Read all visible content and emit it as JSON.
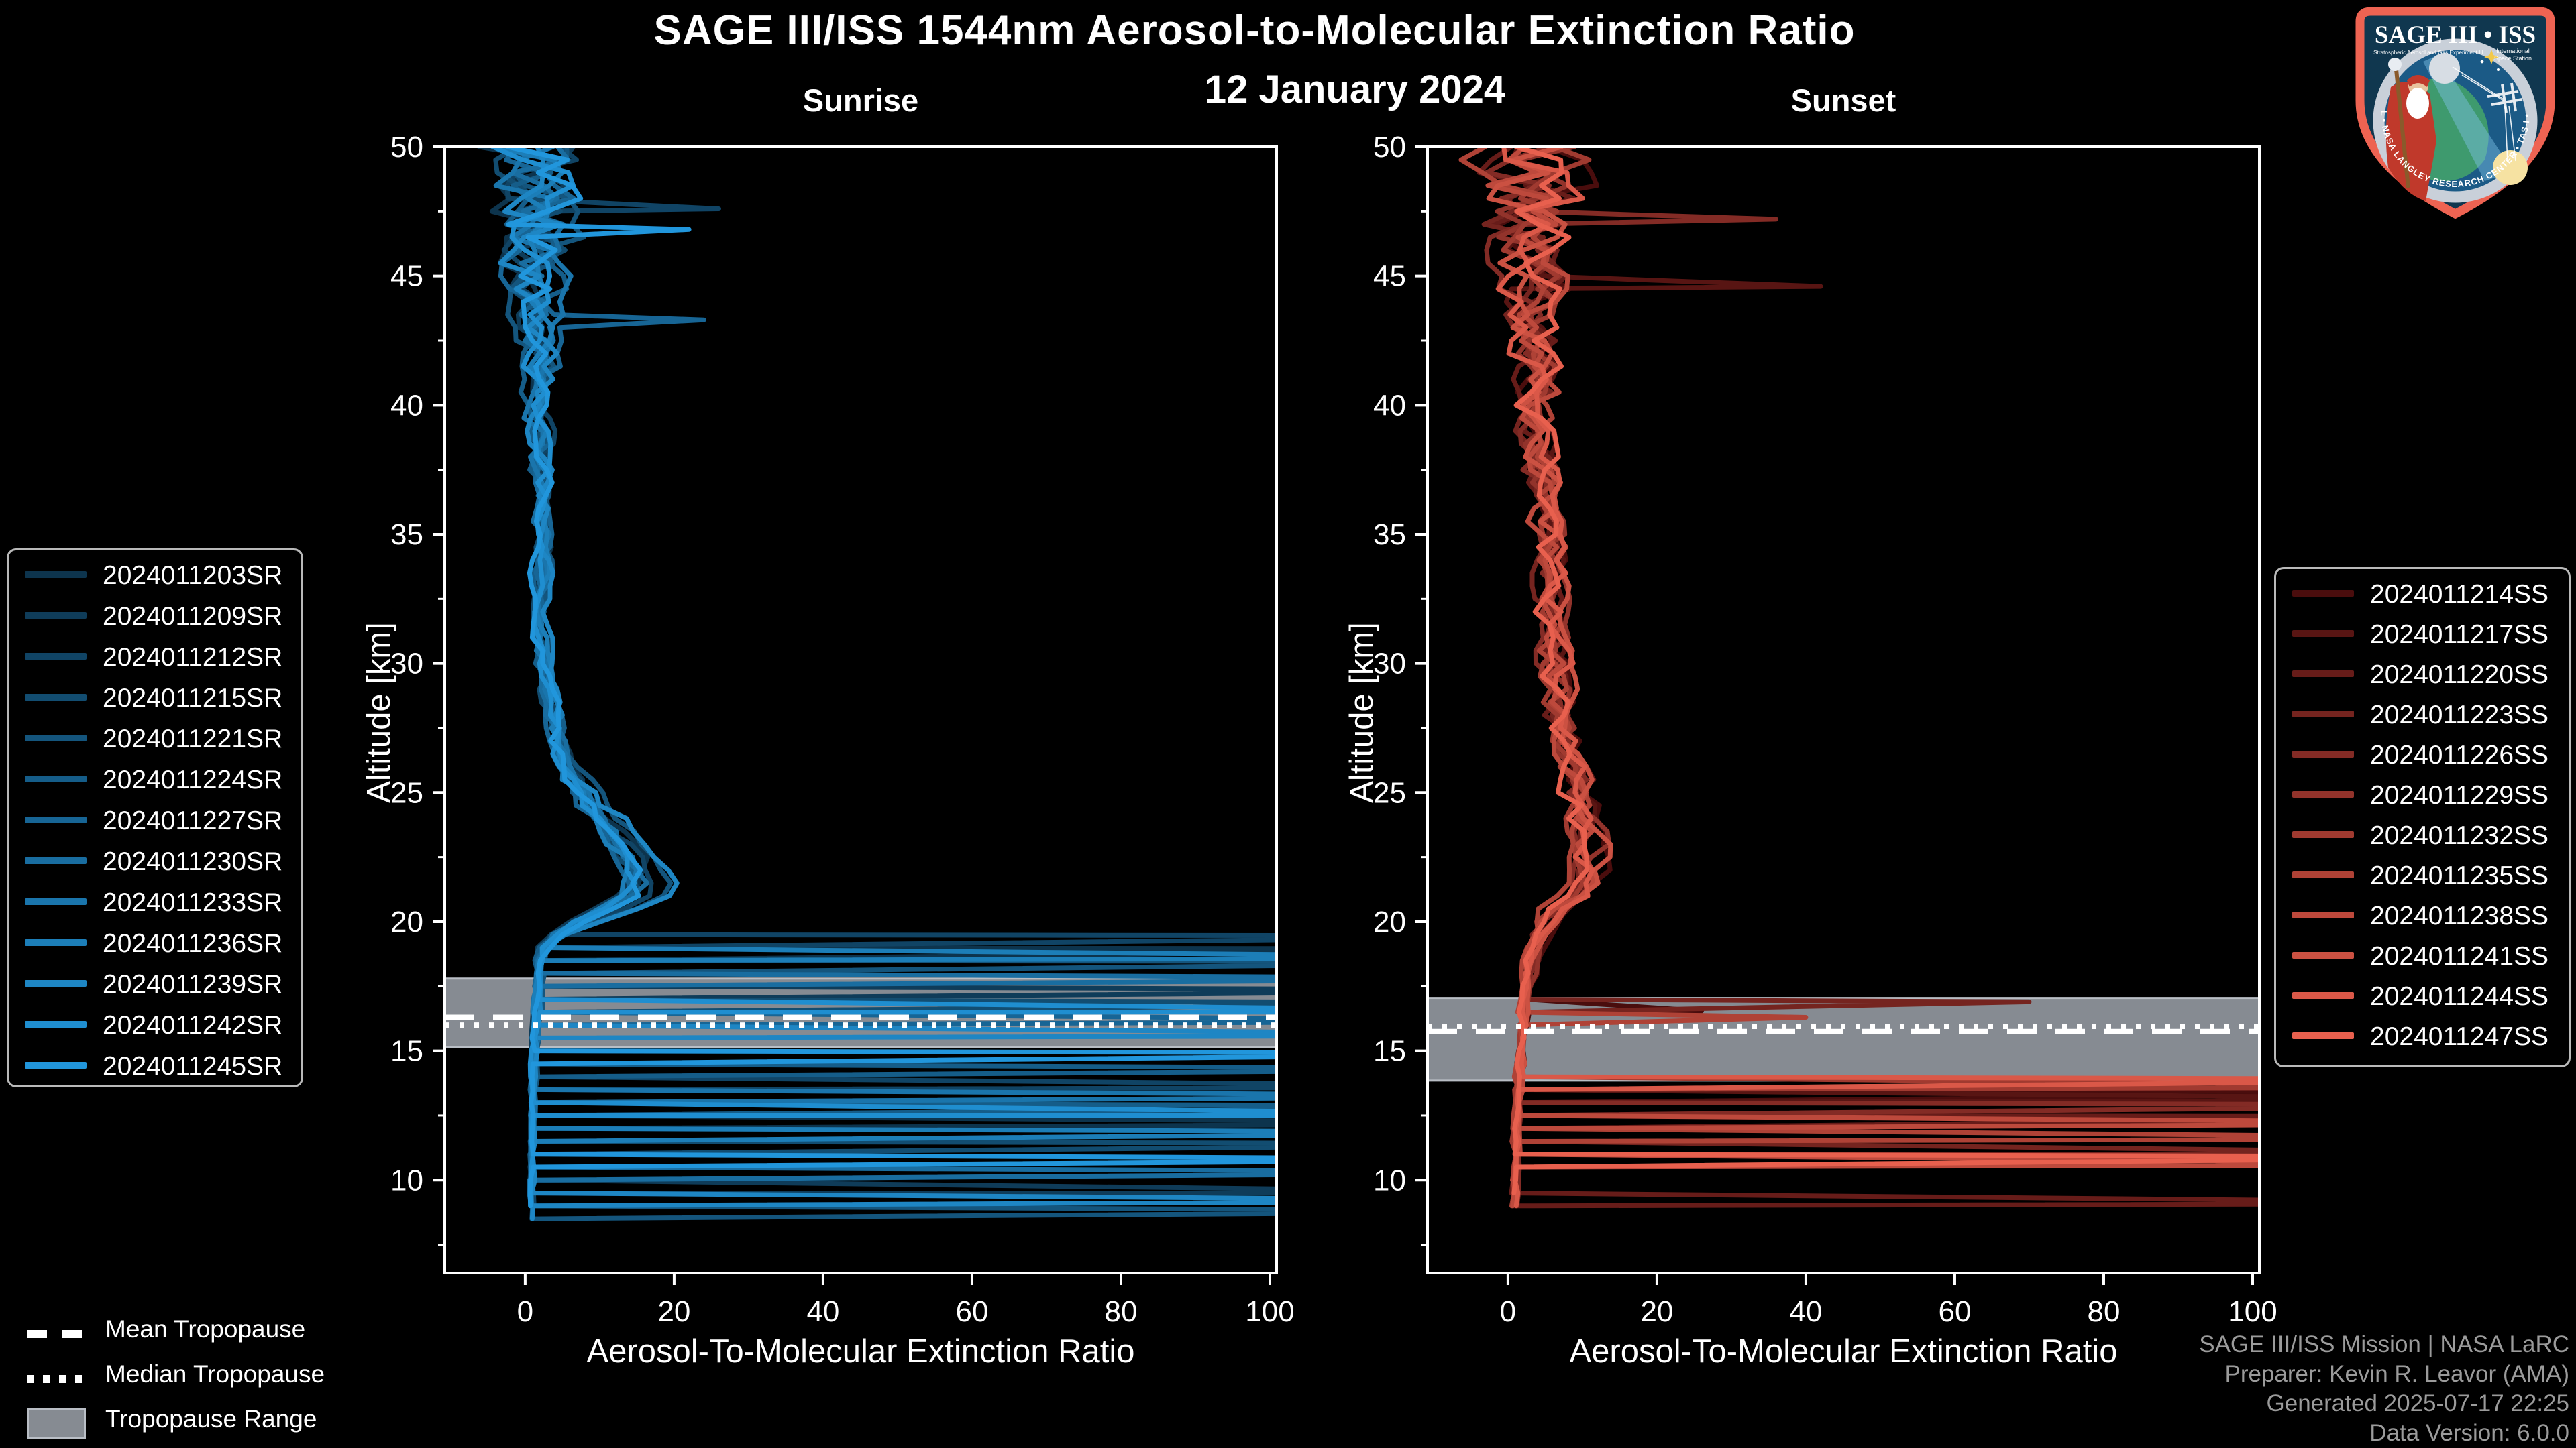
{
  "header": {
    "title": "SAGE III/ISS 1544nm Aerosol-to-Molecular Extinction Ratio",
    "date": "12 January 2024"
  },
  "colors": {
    "background": "#000000",
    "text": "#ffffff",
    "frame": "#ffffff",
    "credits_text": "#9b9b9b",
    "tropopause_band": "#868b92",
    "tropopause_band_border": "#b9bec5",
    "legend_border": "#b9b9b9",
    "logo_border": "#ee6352",
    "logo_field": "#10374f"
  },
  "tropopause_legend": {
    "mean_label": "Mean Tropopause",
    "median_label": "Median Tropopause",
    "range_label": "Tropopause Range",
    "mean_swatch": "dashed-white-line",
    "median_swatch": "dotted-white-line",
    "range_swatch": "gray-filled-box"
  },
  "credits": {
    "line1": "SAGE III/ISS Mission | NASA LaRC",
    "line2": "Preparer: Kevin R. Leavor (AMA)",
    "line3": "Generated 2025-07-17 22:25",
    "line4": "Data Version: 6.0.0"
  },
  "logo": {
    "title": "SAGE III • ISS",
    "subtitle_left": "Stratospheric Aerosol and Gas Experiment III",
    "subtitle_right_1": "International",
    "subtitle_right_2": "Space Station",
    "ring_text": "BALL • NASA LANGLEY RESEARCH CENTER • TAS-I • ESA"
  },
  "chart_data": [
    {
      "type": "line",
      "title": "Sunrise",
      "xlabel": "Aerosol-To-Molecular Extinction Ratio",
      "ylabel": "Altitude [km]",
      "xlim": [
        -10.8,
        100.9
      ],
      "ylim": [
        6.4,
        50
      ],
      "xticks": [
        0,
        20,
        40,
        60,
        80,
        100
      ],
      "yticks": [
        10,
        15,
        20,
        25,
        30,
        35,
        40,
        45,
        50
      ],
      "grid": false,
      "legend_position": "outside-left",
      "tropopause": {
        "mean_km": 16.3,
        "median_km": 16.0,
        "range_km": [
          15.15,
          17.8
        ]
      },
      "base_profile": [
        [
          50,
          1.5
        ],
        [
          48,
          1.5
        ],
        [
          46,
          1.8
        ],
        [
          44,
          1.2
        ],
        [
          42,
          2.0
        ],
        [
          40,
          2.2
        ],
        [
          38,
          2.0
        ],
        [
          36,
          2.5
        ],
        [
          34,
          2.2
        ],
        [
          32,
          2.0
        ],
        [
          30,
          2.7
        ],
        [
          29,
          3.0
        ],
        [
          28,
          4.0
        ],
        [
          27,
          4.5
        ],
        [
          26,
          5.5
        ],
        [
          25,
          8.0
        ],
        [
          24,
          11.0
        ],
        [
          23,
          14.0
        ],
        [
          22,
          16.0
        ],
        [
          21.5,
          16.3
        ],
        [
          21,
          15.5
        ],
        [
          20.5,
          12.0
        ],
        [
          20,
          8.0
        ],
        [
          19.5,
          4.5
        ],
        [
          19,
          2.8
        ],
        [
          18.5,
          2.2
        ],
        [
          18,
          2.0
        ],
        [
          17,
          1.8
        ],
        [
          16,
          1.5
        ],
        [
          15,
          1.3
        ],
        [
          13,
          1.1
        ],
        [
          11,
          0.9
        ],
        [
          8,
          0.7
        ]
      ],
      "noise_amp": [
        [
          50,
          6.5
        ],
        [
          47,
          5.0
        ],
        [
          45,
          3.5
        ],
        [
          43,
          2.2
        ],
        [
          40,
          1.6
        ],
        [
          36,
          1.2
        ],
        [
          32,
          0.9
        ],
        [
          28,
          1.0
        ],
        [
          24,
          1.3
        ],
        [
          21,
          1.3
        ],
        [
          19.5,
          0.9
        ],
        [
          18,
          0.45
        ],
        [
          16,
          0.35
        ],
        [
          12,
          0.3
        ],
        [
          8,
          0.3
        ]
      ],
      "series": [
        {
          "name": "2024011203SR",
          "color": "#0d344d",
          "seed": 3,
          "min_alt_km": 8.4,
          "cloud_spikes": [
            [
              18.95,
              150
            ],
            [
              12.2,
              150
            ]
          ]
        },
        {
          "name": "2024011209SR",
          "color": "#0f3c59",
          "seed": 9,
          "min_alt_km": 9.1,
          "cloud_spikes": [
            [
              17.35,
              150
            ],
            [
              9.5,
              150
            ]
          ]
        },
        {
          "name": "2024011212SR",
          "color": "#104465",
          "seed": 12,
          "min_alt_km": 8.6,
          "cloud_spikes": [
            [
              19.45,
              150
            ],
            [
              13.6,
              150
            ],
            [
              47.6,
              26
            ]
          ]
        },
        {
          "name": "2024011215SR",
          "color": "#124d71",
          "seed": 15,
          "min_alt_km": 9.8,
          "cloud_spikes": [
            [
              16.85,
              150
            ],
            [
              11.4,
              150
            ]
          ]
        },
        {
          "name": "2024011221SR",
          "color": "#14557d",
          "seed": 21,
          "min_alt_km": 8.3,
          "cloud_spikes": [
            [
              18.45,
              150
            ],
            [
              8.8,
              150
            ]
          ]
        },
        {
          "name": "2024011224SR",
          "color": "#155d89",
          "seed": 24,
          "min_alt_km": 10.2,
          "cloud_spikes": [
            [
              14.3,
              150
            ],
            [
              12.85,
              150
            ]
          ]
        },
        {
          "name": "2024011227SR",
          "color": "#176595",
          "seed": 27,
          "min_alt_km": 9.4,
          "cloud_spikes": [
            [
              16.15,
              150
            ],
            [
              43.3,
              24
            ]
          ]
        },
        {
          "name": "2024011230SR",
          "color": "#196da0",
          "seed": 30,
          "min_alt_km": 8.8,
          "cloud_spikes": [
            [
              17.8,
              150
            ],
            [
              10.3,
              150
            ]
          ]
        },
        {
          "name": "2024011233SR",
          "color": "#1a75ac",
          "seed": 33,
          "min_alt_km": 10.6,
          "cloud_spikes": [
            [
              13.25,
              150
            ]
          ]
        },
        {
          "name": "2024011236SR",
          "color": "#1c7eb8",
          "seed": 36,
          "min_alt_km": 9.0,
          "cloud_spikes": [
            [
              18.6,
              150
            ],
            [
              11.85,
              150
            ]
          ]
        },
        {
          "name": "2024011239SR",
          "color": "#1e86c4",
          "seed": 39,
          "min_alt_km": 8.5,
          "cloud_spikes": [
            [
              15.6,
              150
            ],
            [
              9.2,
              150
            ]
          ]
        },
        {
          "name": "2024011242SR",
          "color": "#1f8ed0",
          "seed": 42,
          "min_alt_km": 9.6,
          "cloud_spikes": [
            [
              16.5,
              150
            ],
            [
              12.5,
              150
            ],
            [
              9.0,
              150
            ]
          ]
        },
        {
          "name": "2024011245SR",
          "color": "#2196dc",
          "seed": 45,
          "min_alt_km": 8.9,
          "cloud_spikes": [
            [
              14.9,
              150
            ],
            [
              10.8,
              150
            ],
            [
              46.8,
              22
            ]
          ]
        }
      ]
    },
    {
      "type": "line",
      "title": "Sunset",
      "xlabel": "Aerosol-To-Molecular Extinction Ratio",
      "ylabel": "Altitude [km]",
      "xlim": [
        -10.8,
        100.9
      ],
      "ylim": [
        6.4,
        50
      ],
      "xticks": [
        0,
        20,
        40,
        60,
        80,
        100
      ],
      "yticks": [
        10,
        15,
        20,
        25,
        30,
        35,
        40,
        45,
        50
      ],
      "grid": false,
      "legend_position": "outside-right",
      "tropopause": {
        "mean_km": 15.75,
        "median_km": 15.95,
        "range_km": [
          13.85,
          17.05
        ]
      },
      "base_profile": [
        [
          50,
          3.0
        ],
        [
          46,
          3.5
        ],
        [
          42,
          4.0
        ],
        [
          38,
          4.2
        ],
        [
          35,
          5.5
        ],
        [
          33,
          5.8
        ],
        [
          31,
          6.0
        ],
        [
          29,
          6.5
        ],
        [
          27,
          7.5
        ],
        [
          25,
          9.5
        ],
        [
          24,
          10.5
        ],
        [
          23,
          11.0
        ],
        [
          22,
          10.5
        ],
        [
          21,
          9.0
        ],
        [
          20.5,
          6.5
        ],
        [
          20,
          5.2
        ],
        [
          19.5,
          4.2
        ],
        [
          19,
          3.6
        ],
        [
          18,
          3.0
        ],
        [
          17,
          2.6
        ],
        [
          16,
          2.2
        ],
        [
          15,
          1.8
        ],
        [
          13,
          1.4
        ],
        [
          11,
          1.1
        ],
        [
          8.6,
          0.9
        ]
      ],
      "noise_amp": [
        [
          50,
          7.0
        ],
        [
          47,
          5.5
        ],
        [
          45,
          4.0
        ],
        [
          43,
          3.0
        ],
        [
          40,
          2.4
        ],
        [
          36,
          2.0
        ],
        [
          32,
          1.7
        ],
        [
          28,
          1.7
        ],
        [
          24,
          1.8
        ],
        [
          21,
          1.4
        ],
        [
          19.5,
          1.0
        ],
        [
          18,
          0.6
        ],
        [
          16,
          0.5
        ],
        [
          12,
          0.45
        ],
        [
          8.6,
          0.4
        ]
      ],
      "series": [
        {
          "name": "2024011214SS",
          "color": "#4a0d0d",
          "seed": 14,
          "min_alt_km": 8.6,
          "cloud_spikes": [
            [
              16.55,
              26
            ],
            [
              13.4,
              150
            ]
          ]
        },
        {
          "name": "2024011217SS",
          "color": "#581513",
          "seed": 17,
          "min_alt_km": 9.3,
          "cloud_spikes": [
            [
              13.1,
              150
            ],
            [
              44.6,
              42
            ]
          ]
        },
        {
          "name": "2024011220SS",
          "color": "#671c19",
          "seed": 20,
          "min_alt_km": 8.8,
          "cloud_spikes": [
            [
              12.45,
              150
            ],
            [
              9.1,
              150
            ]
          ]
        },
        {
          "name": "2024011223SS",
          "color": "#75241f",
          "seed": 23,
          "min_alt_km": 10.0,
          "cloud_spikes": [
            [
              16.9,
              70
            ],
            [
              11.0,
              150
            ]
          ]
        },
        {
          "name": "2024011226SS",
          "color": "#832b25",
          "seed": 26,
          "min_alt_km": 8.7,
          "cloud_spikes": [
            [
              12.9,
              150
            ],
            [
              47.2,
              36
            ]
          ]
        },
        {
          "name": "2024011229SS",
          "color": "#92332b",
          "seed": 29,
          "min_alt_km": 10.4,
          "cloud_spikes": [
            [
              10.2,
              150
            ]
          ]
        },
        {
          "name": "2024011232SS",
          "color": "#a03a30",
          "seed": 32,
          "min_alt_km": 9.0,
          "cloud_spikes": [
            [
              13.6,
              150
            ],
            [
              8.9,
              150
            ]
          ]
        },
        {
          "name": "2024011235SS",
          "color": "#af4236",
          "seed": 35,
          "min_alt_km": 9.7,
          "cloud_spikes": [
            [
              11.6,
              150
            ],
            [
              16.3,
              40
            ]
          ]
        },
        {
          "name": "2024011238SS",
          "color": "#bd493c",
          "seed": 38,
          "min_alt_km": 8.9,
          "cloud_spikes": [
            [
              12.2,
              150
            ],
            [
              10.6,
              150
            ]
          ]
        },
        {
          "name": "2024011241SS",
          "color": "#cb5142",
          "seed": 41,
          "min_alt_km": 10.1,
          "cloud_spikes": [
            [
              9.6,
              150
            ]
          ]
        },
        {
          "name": "2024011244SS",
          "color": "#da5848",
          "seed": 44,
          "min_alt_km": 8.6,
          "cloud_spikes": [
            [
              13.9,
              150
            ],
            [
              8.8,
              150
            ]
          ]
        },
        {
          "name": "2024011247SS",
          "color": "#e8604e",
          "seed": 47,
          "min_alt_km": 9.2,
          "cloud_spikes": [
            [
              10.9,
              150
            ],
            [
              9.3,
              150
            ]
          ]
        }
      ]
    }
  ]
}
